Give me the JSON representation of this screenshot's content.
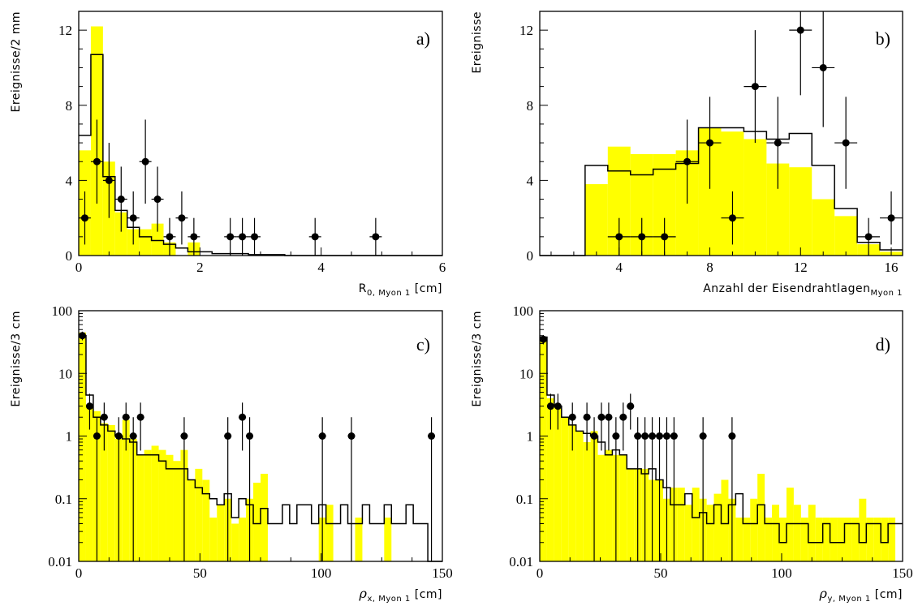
{
  "chart_data": [
    {
      "type": "bar",
      "panel_label": "a)",
      "xlabel_main": "R",
      "xlabel_sub": "0, Myon 1",
      "xlabel_unit": " [cm]",
      "ylabel": "Ereignisse/2 mm",
      "xlim": [
        0,
        6
      ],
      "ylim": [
        0,
        13
      ],
      "xticks": [
        0,
        2,
        4,
        6
      ],
      "yticks": [
        0,
        4,
        8,
        12
      ],
      "x_bin_edges": [
        0,
        0.2,
        0.4,
        0.6,
        0.8,
        1.0,
        1.2,
        1.4,
        1.6,
        1.8,
        2.0,
        2.2,
        2.4,
        2.6,
        2.8,
        3.0,
        3.2,
        3.4,
        3.6,
        3.8,
        4.0,
        4.2,
        4.4,
        4.6,
        4.8,
        5.0,
        5.2,
        5.4,
        5.6,
        5.8,
        6.0
      ],
      "series": [
        {
          "style": "filled_histogram",
          "color": "#ffff00",
          "values": [
            5.6,
            12.2,
            5.0,
            2.3,
            1.4,
            1.4,
            1.7,
            0.7,
            0,
            0.7,
            0,
            0,
            0,
            0,
            0,
            0,
            0,
            0,
            0,
            0,
            0,
            0,
            0,
            0,
            0,
            0,
            0,
            0,
            0,
            0
          ]
        },
        {
          "style": "line_histogram",
          "color": "#000000",
          "values": [
            6.4,
            10.7,
            4.2,
            2.4,
            1.5,
            1.0,
            0.8,
            0.6,
            0.4,
            0.2,
            0.2,
            0.1,
            0.1,
            0.1,
            0.05,
            0.05,
            0.05,
            0,
            0,
            0,
            0,
            0,
            0,
            0,
            0,
            0,
            0,
            0,
            0,
            0
          ]
        },
        {
          "style": "points",
          "color": "#000000",
          "x": [
            0.1,
            0.3,
            0.5,
            0.7,
            0.9,
            1.1,
            1.3,
            1.5,
            1.7,
            1.9,
            2.5,
            2.7,
            2.9,
            3.9,
            4.9
          ],
          "y": [
            2,
            5,
            4,
            3,
            2,
            5,
            3,
            1,
            2,
            1,
            1,
            1,
            1,
            1,
            1
          ]
        }
      ]
    },
    {
      "type": "bar",
      "panel_label": "b)",
      "xlabel_main": "Anzahl der Eisendrahtlagen",
      "xlabel_sub": "Myon 1",
      "xlabel_unit": "",
      "ylabel": "Ereignisse",
      "xlim": [
        0.5,
        16.5
      ],
      "ylim": [
        0,
        13
      ],
      "xticks": [
        4,
        8,
        12,
        16
      ],
      "yticks": [
        0,
        4,
        8,
        12
      ],
      "x_bin_edges": [
        0.5,
        1.5,
        2.5,
        3.5,
        4.5,
        5.5,
        6.5,
        7.5,
        8.5,
        9.5,
        10.5,
        11.5,
        12.5,
        13.5,
        14.5,
        15.5,
        16.5
      ],
      "series": [
        {
          "style": "filled_histogram",
          "color": "#ffff00",
          "values": [
            0,
            0,
            3.8,
            5.8,
            5.4,
            5.4,
            5.6,
            6.8,
            6.6,
            6.2,
            4.9,
            4.7,
            3.0,
            2.1,
            0.6,
            0.2
          ]
        },
        {
          "style": "line_histogram",
          "color": "#000000",
          "values": [
            0,
            0,
            4.8,
            4.5,
            4.3,
            4.6,
            4.9,
            6.8,
            6.8,
            6.6,
            6.2,
            6.5,
            4.8,
            2.5,
            0.7,
            0.3
          ]
        },
        {
          "style": "points",
          "color": "#000000",
          "x": [
            4,
            5,
            6,
            7,
            8,
            9,
            10,
            11,
            12,
            13,
            14,
            15,
            16
          ],
          "y": [
            1,
            1,
            1,
            5,
            6,
            2,
            9,
            6,
            12,
            10,
            6,
            1,
            2
          ]
        }
      ]
    },
    {
      "type": "bar",
      "panel_label": "c)",
      "xlabel_main": "ρ",
      "xlabel_sub": "x, Myon 1",
      "xlabel_unit": " [cm]",
      "ylabel": "Ereignisse/3 cm",
      "yscale": "log",
      "xlim": [
        0,
        150
      ],
      "ylim": [
        0.01,
        100
      ],
      "xticks": [
        0,
        50,
        100,
        150
      ],
      "yticks": [
        0.01,
        0.1,
        1,
        10,
        100
      ],
      "ytick_labels": [
        "0.01",
        "0.1",
        "1",
        "10",
        "100"
      ],
      "bin_width": 3,
      "series": [
        {
          "style": "filled_histogram",
          "color": "#ffff00",
          "values": [
            45,
            3.2,
            2.5,
            1.6,
            1.5,
            0.9,
            1.8,
            0.9,
            0.5,
            0.6,
            0.7,
            0.6,
            0.5,
            0.4,
            0.6,
            0.2,
            0.3,
            0.2,
            0.05,
            0.08,
            0.1,
            0.04,
            0.05,
            0.1,
            0.18,
            0.25,
            0,
            0,
            0,
            0,
            0,
            0,
            0,
            0.05,
            0.08,
            0,
            0,
            0,
            0.05,
            0,
            0,
            0,
            0.05,
            0,
            0,
            0,
            0,
            0,
            0,
            0
          ]
        },
        {
          "style": "line_histogram",
          "color": "#000000",
          "values": [
            40,
            4.5,
            2.0,
            1.5,
            1.2,
            1.0,
            0.9,
            0.8,
            0.5,
            0.5,
            0.5,
            0.4,
            0.3,
            0.3,
            0.3,
            0.2,
            0.15,
            0.12,
            0.1,
            0.08,
            0.12,
            0.05,
            0.1,
            0.08,
            0.04,
            0.07,
            0.04,
            0.04,
            0.08,
            0.04,
            0.08,
            0.08,
            0.04,
            0.08,
            0.04,
            0.04,
            0.08,
            0.04,
            0.04,
            0.08,
            0.04,
            0.04,
            0.08,
            0.04,
            0.04,
            0.08,
            0.04,
            0.04,
            0,
            0
          ]
        },
        {
          "style": "points",
          "color": "#000000",
          "x": [
            1.5,
            4.5,
            7.5,
            10.5,
            16.5,
            19.5,
            22.5,
            25.5,
            43.5,
            61.5,
            67.5,
            70.5,
            100.5,
            112.5,
            145.5
          ],
          "y": [
            40,
            3,
            1,
            2,
            1,
            2,
            1,
            2,
            1,
            1,
            2,
            1,
            1,
            1,
            1
          ]
        }
      ]
    },
    {
      "type": "bar",
      "panel_label": "d)",
      "xlabel_main": "ρ",
      "xlabel_sub": "y, Myon 1",
      "xlabel_unit": " [cm]",
      "ylabel": "Ereignisse/3 cm",
      "yscale": "log",
      "xlim": [
        0,
        150
      ],
      "ylim": [
        0.01,
        100
      ],
      "xticks": [
        0,
        50,
        100,
        150
      ],
      "yticks": [
        0.01,
        0.1,
        1,
        10,
        100
      ],
      "ytick_labels": [
        "0.01",
        "0.1",
        "1",
        "10",
        "100"
      ],
      "bin_width": 3,
      "series": [
        {
          "style": "filled_histogram",
          "color": "#ffff00",
          "values": [
            35,
            4.0,
            3.0,
            2.0,
            1.5,
            1.2,
            0.8,
            1.2,
            0.5,
            0.6,
            0.5,
            0.5,
            0.3,
            0.3,
            0.3,
            0.2,
            0.2,
            0.1,
            0.15,
            0.15,
            0.08,
            0.15,
            0.1,
            0.08,
            0.12,
            0.2,
            0.1,
            0.05,
            0.05,
            0.1,
            0.25,
            0.05,
            0.08,
            0.05,
            0.15,
            0.08,
            0.05,
            0.08,
            0.05,
            0.05,
            0.05,
            0.05,
            0.05,
            0.05,
            0.1,
            0.05,
            0.05,
            0.05,
            0.05,
            0
          ]
        },
        {
          "style": "line_histogram",
          "color": "#000000",
          "values": [
            38,
            4.5,
            3.0,
            2.0,
            1.5,
            1.2,
            1.1,
            1.0,
            0.8,
            0.5,
            0.6,
            0.5,
            0.3,
            0.3,
            0.25,
            0.3,
            0.2,
            0.15,
            0.08,
            0.08,
            0.12,
            0.05,
            0.06,
            0.04,
            0.08,
            0.04,
            0.08,
            0.12,
            0.04,
            0.04,
            0.08,
            0.04,
            0.04,
            0.02,
            0.04,
            0.04,
            0.04,
            0.02,
            0.02,
            0.04,
            0.02,
            0.02,
            0.04,
            0.04,
            0.02,
            0.04,
            0.04,
            0.02,
            0.04,
            0.04
          ]
        },
        {
          "style": "points",
          "color": "#000000",
          "x": [
            1.5,
            4.5,
            7.5,
            13.5,
            19.5,
            22.5,
            25.5,
            28.5,
            31.5,
            34.5,
            37.5,
            40.5,
            43.5,
            46.5,
            49.5,
            52.5,
            55.5,
            67.5,
            79.5
          ],
          "y": [
            35,
            3,
            3,
            2,
            2,
            1,
            2,
            2,
            1,
            2,
            3,
            1,
            1,
            1,
            1,
            1,
            1,
            1,
            1
          ]
        }
      ]
    }
  ]
}
